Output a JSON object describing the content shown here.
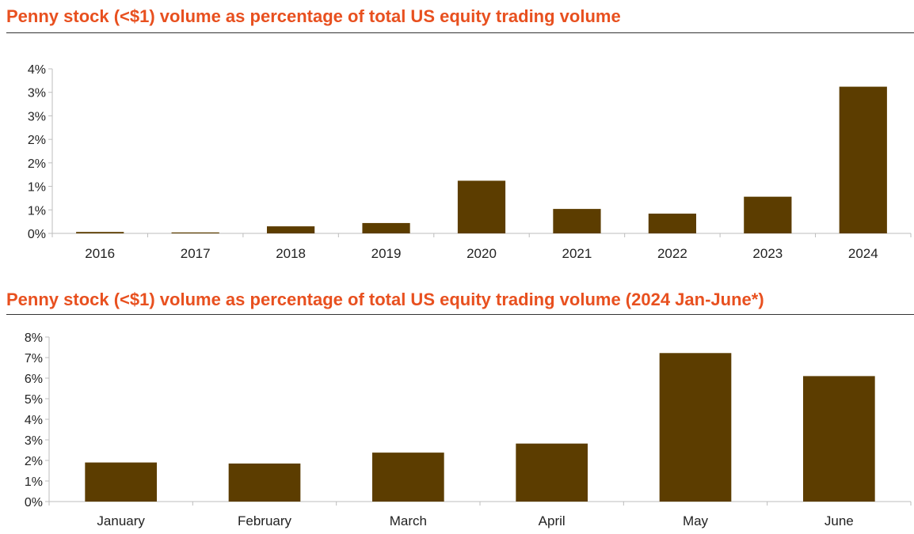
{
  "chart_data": [
    {
      "type": "bar",
      "title": "Penny stock (<$1) volume as percentage of total US equity trading volume",
      "categories": [
        "2016",
        "2017",
        "2018",
        "2019",
        "2020",
        "2021",
        "2022",
        "2023",
        "2024"
      ],
      "values": [
        0.03,
        0.02,
        0.15,
        0.22,
        1.12,
        0.52,
        0.42,
        0.78,
        3.12
      ],
      "ytick_labels": [
        "0%",
        "1%",
        "1%",
        "2%",
        "2%",
        "3%",
        "3%",
        "4%"
      ],
      "ylim": [
        0,
        3.5
      ],
      "xlabel": "",
      "ylabel": "",
      "grid": false,
      "legend": "none",
      "bar_color": "#5c3d00"
    },
    {
      "type": "bar",
      "title": "Penny stock (<$1) volume as percentage of total US equity trading volume (2024 Jan-June*)",
      "categories": [
        "January",
        "February",
        "March",
        "April",
        "May",
        "June"
      ],
      "values": [
        1.9,
        1.85,
        2.38,
        2.82,
        7.22,
        6.1
      ],
      "ytick_labels": [
        "0%",
        "1%",
        "2%",
        "3%",
        "4%",
        "5%",
        "6%",
        "7%",
        "8%"
      ],
      "ylim": [
        0,
        8
      ],
      "xlabel": "",
      "ylabel": "",
      "grid": false,
      "legend": "none",
      "bar_color": "#5c3d00"
    }
  ]
}
